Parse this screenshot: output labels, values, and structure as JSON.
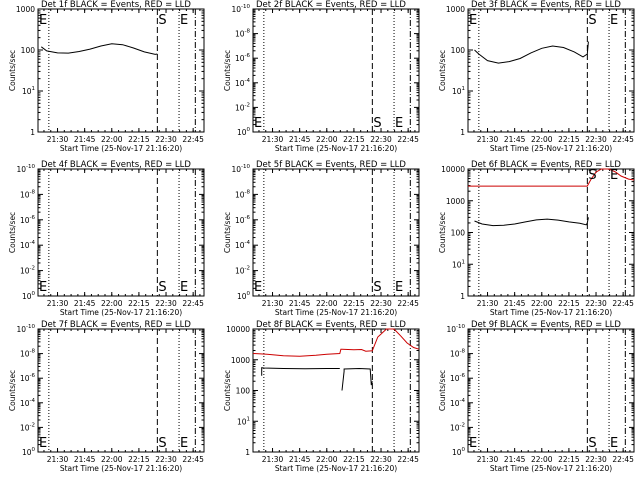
{
  "chart_data": [
    {
      "type": "line",
      "title": "Det 1f BLACK = Events, RED = LLD",
      "ylabel": "Counts/sec",
      "xlabel": "Start Time (25-Nov-17 21:16:20)",
      "yscale": "log",
      "ylim": [
        1,
        1000
      ],
      "ytick_labels": [
        "1",
        "10",
        "100",
        "1000"
      ],
      "y_tick_exponents": [
        0,
        1,
        2,
        3
      ],
      "xlim": [
        21.32,
        22.85
      ],
      "xticks": [
        21.5,
        21.75,
        22.0,
        22.25,
        22.5,
        22.75
      ],
      "xtick_labels": [
        "21:30",
        "21:45",
        "22:00",
        "22:15",
        "22:30",
        "22:45"
      ],
      "vlines": [
        {
          "x": 21.42,
          "style": "dotted"
        },
        {
          "x": 22.42,
          "style": "dashed"
        },
        {
          "x": 22.62,
          "style": "dotted"
        },
        {
          "x": 22.77,
          "style": "dashdot"
        }
      ],
      "markers": [
        {
          "label": "E",
          "x": 21.32,
          "yfrac": 0.92
        },
        {
          "label": "S",
          "x": 22.42,
          "yfrac": 0.92
        },
        {
          "label": "E",
          "x": 22.62,
          "yfrac": 0.92
        }
      ],
      "series": [
        {
          "color": "#000000",
          "x": [
            21.35,
            21.4,
            21.5,
            21.6,
            21.7,
            21.8,
            21.9,
            22.0,
            22.1,
            22.2,
            22.3,
            22.4,
            22.42
          ],
          "y": [
            120,
            95,
            85,
            84,
            92,
            105,
            125,
            142,
            135,
            112,
            90,
            78,
            80
          ]
        }
      ],
      "grid": false
    },
    {
      "type": "line",
      "title": "Det 2f BLACK = Events, RED = LLD",
      "ylabel": "Counts/sec",
      "xlabel": "Start Time (25-Nov-17 21:16:20)",
      "yscale": "log",
      "ylim": [
        1,
        1000000
      ],
      "ytick_labels": [
        "10",
        "10",
        "10",
        "10",
        "10",
        "10"
      ],
      "y_tick_exponents": [
        0,
        -2,
        -4,
        -6,
        -8,
        -10
      ],
      "xlim": [
        21.32,
        22.85
      ],
      "xticks": [
        21.5,
        21.75,
        22.0,
        22.25,
        22.5,
        22.75
      ],
      "xtick_labels": [
        "21:30",
        "21:45",
        "22:00",
        "22:15",
        "22:30",
        "22:45"
      ],
      "vlines": [
        {
          "x": 21.42,
          "style": "dotted"
        },
        {
          "x": 22.42,
          "style": "dashed"
        },
        {
          "x": 22.62,
          "style": "dotted"
        },
        {
          "x": 22.77,
          "style": "dashdot"
        }
      ],
      "markers": [
        {
          "label": "E",
          "x": 21.32,
          "yfrac": 0.08
        },
        {
          "label": "S",
          "x": 22.42,
          "yfrac": 0.08
        },
        {
          "label": "E",
          "x": 22.62,
          "yfrac": 0.08
        }
      ],
      "series": [],
      "grid": false
    },
    {
      "type": "line",
      "title": "Det 3f BLACK = Events, RED = LLD",
      "ylabel": "Counts/sec",
      "xlabel": "Start Time (25-Nov-17 21:16:20)",
      "yscale": "log",
      "ylim": [
        1,
        1000
      ],
      "ytick_labels": [
        "1",
        "10",
        "100",
        "1000"
      ],
      "y_tick_exponents": [
        0,
        1,
        2,
        3
      ],
      "xlim": [
        21.32,
        22.85
      ],
      "xticks": [
        21.5,
        21.75,
        22.0,
        22.25,
        22.5,
        22.75
      ],
      "xtick_labels": [
        "21:30",
        "21:45",
        "22:00",
        "22:15",
        "22:30",
        "22:45"
      ],
      "vlines": [
        {
          "x": 21.42,
          "style": "dotted"
        },
        {
          "x": 22.42,
          "style": "dashed"
        },
        {
          "x": 22.62,
          "style": "dotted"
        },
        {
          "x": 22.77,
          "style": "dashdot"
        }
      ],
      "markers": [
        {
          "label": "E",
          "x": 21.32,
          "yfrac": 0.92
        },
        {
          "label": "S",
          "x": 22.42,
          "yfrac": 0.92
        },
        {
          "label": "E",
          "x": 22.62,
          "yfrac": 0.92
        }
      ],
      "series": [
        {
          "color": "#000000",
          "x": [
            21.38,
            21.42,
            21.5,
            21.6,
            21.7,
            21.8,
            21.9,
            22.0,
            22.1,
            22.2,
            22.3,
            22.38,
            22.42,
            22.43
          ],
          "y": [
            100,
            80,
            55,
            48,
            52,
            62,
            85,
            110,
            125,
            115,
            90,
            68,
            80,
            160
          ]
        }
      ],
      "grid": false
    },
    {
      "type": "line",
      "title": "Det 4f BLACK = Events, RED = LLD",
      "ylabel": "Counts/sec",
      "xlabel": "Start Time (25-Nov-17 21:16:20)",
      "yscale": "log",
      "ylim": [
        1,
        1000000
      ],
      "ytick_labels": [
        "10",
        "10",
        "10",
        "10",
        "10",
        "10"
      ],
      "y_tick_exponents": [
        0,
        -2,
        -4,
        -6,
        -8,
        -10
      ],
      "xlim": [
        21.32,
        22.85
      ],
      "xticks": [
        21.5,
        21.75,
        22.0,
        22.25,
        22.5,
        22.75
      ],
      "xtick_labels": [
        "21:30",
        "21:45",
        "22:00",
        "22:15",
        "22:30",
        "22:45"
      ],
      "vlines": [
        {
          "x": 21.42,
          "style": "dotted"
        },
        {
          "x": 22.42,
          "style": "dashed"
        },
        {
          "x": 22.62,
          "style": "dotted"
        },
        {
          "x": 22.77,
          "style": "dashdot"
        }
      ],
      "markers": [
        {
          "label": "E",
          "x": 21.32,
          "yfrac": 0.08
        },
        {
          "label": "S",
          "x": 22.42,
          "yfrac": 0.08
        },
        {
          "label": "E",
          "x": 22.62,
          "yfrac": 0.08
        }
      ],
      "series": [],
      "grid": false
    },
    {
      "type": "line",
      "title": "Det 5f BLACK = Events, RED = LLD",
      "ylabel": "Counts/sec",
      "xlabel": "Start Time (25-Nov-17 21:16:20)",
      "yscale": "log",
      "ylim": [
        1,
        1000000
      ],
      "ytick_labels": [
        "10",
        "10",
        "10",
        "10",
        "10",
        "10"
      ],
      "y_tick_exponents": [
        0,
        -2,
        -4,
        -6,
        -8,
        -10
      ],
      "xlim": [
        21.32,
        22.85
      ],
      "xticks": [
        21.5,
        21.75,
        22.0,
        22.25,
        22.5,
        22.75
      ],
      "xtick_labels": [
        "21:30",
        "21:45",
        "22:00",
        "22:15",
        "22:30",
        "22:45"
      ],
      "vlines": [
        {
          "x": 21.42,
          "style": "dotted"
        },
        {
          "x": 22.42,
          "style": "dashed"
        },
        {
          "x": 22.62,
          "style": "dotted"
        },
        {
          "x": 22.77,
          "style": "dashdot"
        }
      ],
      "markers": [
        {
          "label": "E",
          "x": 21.32,
          "yfrac": 0.08
        },
        {
          "label": "S",
          "x": 22.42,
          "yfrac": 0.08
        },
        {
          "label": "E",
          "x": 22.62,
          "yfrac": 0.08
        }
      ],
      "series": [],
      "grid": false
    },
    {
      "type": "line",
      "title": "Det 6f BLACK = Events, RED = LLD",
      "ylabel": "Counts/sec",
      "xlabel": "Start Time (25-Nov-17 21:16:20)",
      "yscale": "log",
      "ylim": [
        1,
        10000
      ],
      "ytick_labels": [
        "1",
        "10",
        "100",
        "1000",
        "10000"
      ],
      "y_tick_exponents": [
        0,
        1,
        2,
        3,
        4
      ],
      "xlim": [
        21.32,
        22.85
      ],
      "xticks": [
        21.5,
        21.75,
        22.0,
        22.25,
        22.5,
        22.75
      ],
      "xtick_labels": [
        "21:30",
        "21:45",
        "22:00",
        "22:15",
        "22:30",
        "22:45"
      ],
      "vlines": [
        {
          "x": 21.42,
          "style": "dotted"
        },
        {
          "x": 22.42,
          "style": "dashed"
        },
        {
          "x": 22.62,
          "style": "dotted"
        },
        {
          "x": 22.77,
          "style": "dashdot"
        }
      ],
      "markers": [
        {
          "label": "S",
          "x": 22.42,
          "yfrac": 0.96
        },
        {
          "label": "E",
          "x": 22.62,
          "yfrac": 0.96
        }
      ],
      "series": [
        {
          "color": "#000000",
          "x": [
            21.38,
            21.45,
            21.55,
            21.65,
            21.75,
            21.85,
            21.95,
            22.05,
            22.15,
            22.25,
            22.35,
            22.41,
            22.42,
            22.43
          ],
          "y": [
            230,
            185,
            165,
            170,
            185,
            215,
            250,
            265,
            245,
            215,
            195,
            175,
            200,
            300
          ]
        },
        {
          "color": "#cc0000",
          "x": [
            21.32,
            21.5,
            21.75,
            22.0,
            22.25,
            22.42,
            22.45,
            22.5,
            22.55,
            22.62,
            22.68,
            22.73,
            22.8,
            22.85
          ],
          "y": [
            2900,
            2900,
            2900,
            2900,
            2900,
            2900,
            4500,
            8000,
            12000,
            14000,
            8000,
            6000,
            4800,
            4500
          ]
        }
      ],
      "grid": false
    },
    {
      "type": "line",
      "title": "Det 7f BLACK = Events, RED = LLD",
      "ylabel": "Counts/sec",
      "xlabel": "Start Time (25-Nov-17 21:16:20)",
      "yscale": "log",
      "ylim": [
        1,
        1000000
      ],
      "ytick_labels": [
        "10",
        "10",
        "10",
        "10",
        "10",
        "10"
      ],
      "y_tick_exponents": [
        0,
        -2,
        -4,
        -6,
        -8,
        -10
      ],
      "xlim": [
        21.32,
        22.85
      ],
      "xticks": [
        21.5,
        21.75,
        22.0,
        22.25,
        22.5,
        22.75
      ],
      "xtick_labels": [
        "21:30",
        "21:45",
        "22:00",
        "22:15",
        "22:30",
        "22:45"
      ],
      "vlines": [
        {
          "x": 21.42,
          "style": "dotted"
        },
        {
          "x": 22.42,
          "style": "dashed"
        },
        {
          "x": 22.62,
          "style": "dotted"
        },
        {
          "x": 22.77,
          "style": "dashdot"
        }
      ],
      "markers": [
        {
          "label": "E",
          "x": 21.32,
          "yfrac": 0.08
        },
        {
          "label": "S",
          "x": 22.42,
          "yfrac": 0.08
        },
        {
          "label": "E",
          "x": 22.62,
          "yfrac": 0.08
        }
      ],
      "series": [],
      "grid": false
    },
    {
      "type": "line",
      "title": "Det 8f BLACK = Events, RED = LLD",
      "ylabel": "Counts/sec",
      "xlabel": "Start Time (25-Nov-17 21:16:20)",
      "yscale": "log",
      "ylim": [
        1,
        10000
      ],
      "ytick_labels": [
        "1",
        "10",
        "100",
        "1000",
        "10000"
      ],
      "y_tick_exponents": [
        0,
        1,
        2,
        3,
        4
      ],
      "xlim": [
        21.32,
        22.85
      ],
      "xticks": [
        21.5,
        21.75,
        22.0,
        22.25,
        22.5,
        22.75
      ],
      "xtick_labels": [
        "21:30",
        "21:45",
        "22:00",
        "22:15",
        "22:30",
        "22:45"
      ],
      "vlines": [
        {
          "x": 21.42,
          "style": "dotted"
        },
        {
          "x": 22.42,
          "style": "dashed"
        },
        {
          "x": 22.62,
          "style": "dotted"
        },
        {
          "x": 22.77,
          "style": "dashdot"
        }
      ],
      "markers": [],
      "series": [
        {
          "color": "#000000",
          "x": [
            21.4,
            21.4,
            21.42,
            21.6,
            21.8,
            22.0,
            22.12,
            22.13,
            22.14,
            22.16,
            22.16,
            22.3,
            22.4,
            22.41,
            22.42
          ],
          "y": [
            300,
            550,
            540,
            520,
            510,
            520,
            520,
            null,
            100,
            420,
            500,
            520,
            500,
            150,
            200
          ]
        },
        {
          "color": "#cc0000",
          "x": [
            21.32,
            21.45,
            21.6,
            21.75,
            21.9,
            22.0,
            22.12,
            22.13,
            22.14,
            22.25,
            22.32,
            22.36,
            22.42,
            22.47,
            22.55,
            22.62,
            22.68,
            22.74,
            22.8,
            22.85
          ],
          "y": [
            1600,
            1500,
            1350,
            1300,
            1400,
            1500,
            1600,
            2200,
            2200,
            2100,
            2150,
            1900,
            1950,
            5500,
            12000,
            16000,
            6000,
            3500,
            2500,
            2200
          ]
        }
      ],
      "grid": false
    },
    {
      "type": "line",
      "title": "Det 9f BLACK = Events, RED = LLD",
      "ylabel": "Counts/sec",
      "xlabel": "Start Time (25-Nov-17 21:16:20)",
      "yscale": "log",
      "ylim": [
        1,
        1000000
      ],
      "ytick_labels": [
        "10",
        "10",
        "10",
        "10",
        "10",
        "10"
      ],
      "y_tick_exponents": [
        0,
        -2,
        -4,
        -6,
        -8,
        -10
      ],
      "xlim": [
        21.32,
        22.85
      ],
      "xticks": [
        21.5,
        21.75,
        22.0,
        22.25,
        22.5,
        22.75
      ],
      "xtick_labels": [
        "21:30",
        "21:45",
        "22:00",
        "22:15",
        "22:30",
        "22:45"
      ],
      "vlines": [
        {
          "x": 21.42,
          "style": "dotted"
        },
        {
          "x": 22.42,
          "style": "dashed"
        },
        {
          "x": 22.62,
          "style": "dotted"
        },
        {
          "x": 22.77,
          "style": "dashdot"
        }
      ],
      "markers": [
        {
          "label": "E",
          "x": 21.32,
          "yfrac": 0.08
        },
        {
          "label": "S",
          "x": 22.42,
          "yfrac": 0.08
        },
        {
          "label": "E",
          "x": 22.62,
          "yfrac": 0.08
        }
      ],
      "series": [],
      "grid": false
    }
  ]
}
